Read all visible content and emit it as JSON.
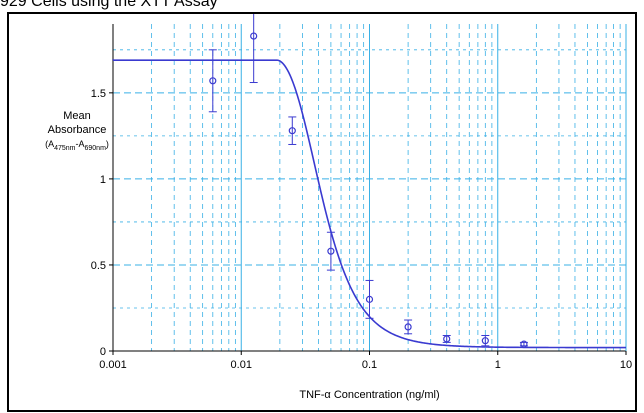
{
  "title": "929 Cells using the XTT Assay",
  "chart_data": {
    "type": "scatter",
    "title": "929 Cells using the XTT Assay",
    "xlabel": "TNF-α Concentration (ng/ml)",
    "ylabel_line1": "Mean",
    "ylabel_line2": "Absorbance",
    "ylabel_line3": "(A475nm-A690nm)",
    "x_scale": "log",
    "xlim": [
      0.001,
      10
    ],
    "ylim": [
      0,
      1.9
    ],
    "x_ticks": [
      "0.001",
      "0.01",
      "0.1",
      "1",
      "10"
    ],
    "y_ticks": [
      "0",
      "0.5",
      "1",
      "1.5"
    ],
    "grid": true,
    "series": [
      {
        "values": [
          {
            "x": 0.006,
            "y": 1.57,
            "err": 0.18
          },
          {
            "x": 0.0125,
            "y": 1.83,
            "err": 0.27
          },
          {
            "x": 0.025,
            "y": 1.28,
            "err": 0.08
          },
          {
            "x": 0.05,
            "y": 0.58,
            "err": 0.11
          },
          {
            "x": 0.1,
            "y": 0.3,
            "err": 0.11
          },
          {
            "x": 0.2,
            "y": 0.14,
            "err": 0.04
          },
          {
            "x": 0.4,
            "y": 0.07,
            "err": 0.02
          },
          {
            "x": 0.8,
            "y": 0.06,
            "err": 0.03
          },
          {
            "x": 1.6,
            "y": 0.04,
            "err": 0.01
          }
        ]
      }
    ],
    "fit_curve": {
      "top": 1.69,
      "bottom": 0.02,
      "start_x": 0.019,
      "scale": 0.025,
      "power": 1.8
    },
    "colors": {
      "curve": "#3a3ad0",
      "grid": "#39b0e6",
      "axis": "#000000"
    }
  }
}
